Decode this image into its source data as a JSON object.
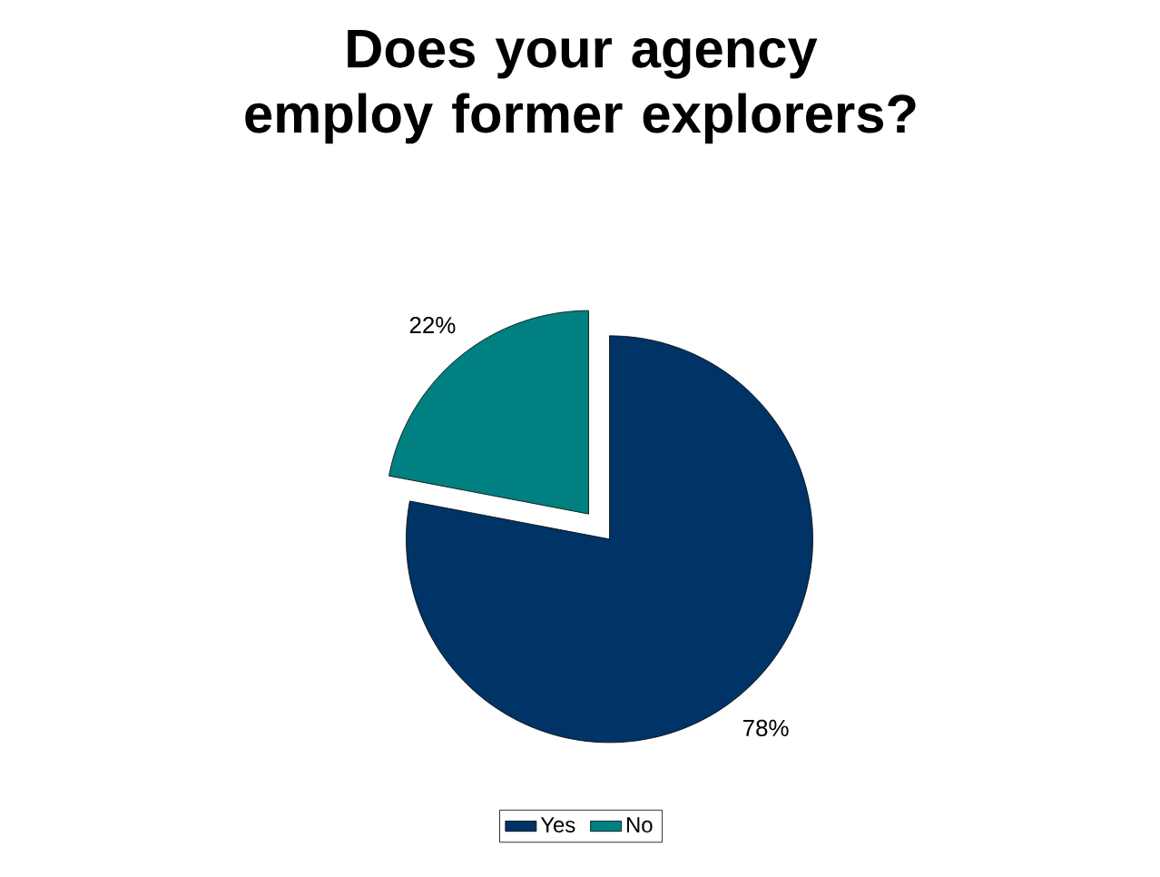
{
  "chart_data": {
    "type": "pie",
    "title": "Does your agency employ former explorers?",
    "categories": [
      "Yes",
      "No"
    ],
    "values": [
      78,
      22
    ],
    "colors": [
      "#003366",
      "#008080"
    ],
    "value_labels": [
      "78%",
      "22%"
    ],
    "legend": "bottom"
  }
}
